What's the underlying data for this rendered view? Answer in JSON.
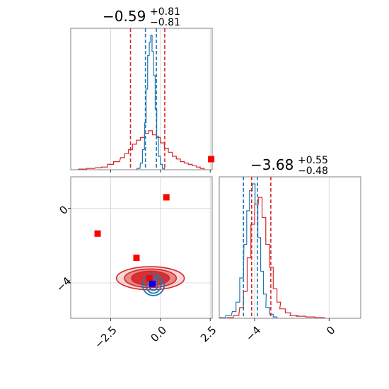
{
  "colors": {
    "blue": "#1f77b4",
    "red": "#d62728",
    "truth_marker": "#ff0000",
    "blue_marker": "#0000ff",
    "grid": "#d0d0d0"
  },
  "chart_data": {
    "type": "corner",
    "grid": true,
    "params": [
      {
        "index": 0,
        "range": [
          -4.5,
          2.6
        ],
        "ticks": [
          -2.5,
          0.0,
          2.5
        ],
        "tick_labels": [
          "−2.5",
          "0.0",
          "2.5"
        ]
      },
      {
        "index": 1,
        "range": [
          -5.9,
          1.7
        ],
        "ticks": [
          -4,
          0
        ],
        "tick_labels": [
          "−4",
          "0"
        ]
      }
    ],
    "titles": [
      {
        "median": "−0.59",
        "plus": "+0.81",
        "minus": "−0.81"
      },
      {
        "median": "−3.68",
        "plus": "+0.55",
        "minus": "−0.48"
      }
    ],
    "marginals": [
      {
        "param": 0,
        "quantiles": {
          "red": [
            -1.5,
            0.22
          ],
          "blue": [
            -0.75,
            -0.2
          ]
        },
        "series": [
          {
            "color": "red",
            "x": [
              -3.9,
              -3.5,
              -3.1,
              -2.8,
              -2.5,
              -2.2,
              -1.9,
              -1.7,
              -1.5,
              -1.3,
              -1.1,
              -0.9,
              -0.7,
              -0.5,
              -0.3,
              -0.1,
              0.1,
              0.3,
              0.5,
              0.7,
              0.9,
              1.1,
              1.3,
              1.5,
              1.7,
              1.9,
              2.1
            ],
            "y": [
              0.005,
              0.01,
              0.015,
              0.02,
              0.04,
              0.06,
              0.09,
              0.12,
              0.15,
              0.19,
              0.22,
              0.24,
              0.27,
              0.29,
              0.26,
              0.24,
              0.2,
              0.16,
              0.13,
              0.1,
              0.08,
              0.06,
              0.05,
              0.04,
              0.03,
              0.02,
              0.01
            ]
          },
          {
            "color": "blue",
            "x": [
              -1.1,
              -0.95,
              -0.85,
              -0.75,
              -0.68,
              -0.6,
              -0.52,
              -0.45,
              -0.38,
              -0.3,
              -0.22,
              -0.14,
              -0.05,
              0.05,
              0.15
            ],
            "y": [
              0.01,
              0.05,
              0.15,
              0.35,
              0.6,
              0.85,
              0.95,
              1.0,
              0.88,
              0.7,
              0.45,
              0.25,
              0.1,
              0.04,
              0.01
            ]
          }
        ]
      },
      {
        "param": 1,
        "quantiles": {
          "red": [
            -4.16,
            -3.13
          ],
          "blue": [
            -4.6,
            -3.85
          ]
        },
        "series": [
          {
            "color": "blue",
            "x": [
              -5.7,
              -5.4,
              -5.1,
              -4.9,
              -4.7,
              -4.5,
              -4.35,
              -4.2,
              -4.05,
              -3.9,
              -3.75,
              -3.6,
              -3.45,
              -3.3,
              -3.1,
              -2.9
            ],
            "y": [
              0.005,
              0.02,
              0.05,
              0.12,
              0.3,
              0.55,
              0.8,
              0.95,
              1.0,
              0.85,
              0.6,
              0.35,
              0.18,
              0.08,
              0.03,
              0.01
            ]
          },
          {
            "color": "red",
            "x": [
              -5.3,
              -5.0,
              -4.7,
              -4.5,
              -4.3,
              -4.1,
              -3.9,
              -3.7,
              -3.5,
              -3.3,
              -3.1,
              -2.9,
              -2.7,
              -2.5,
              -2.2,
              -1.9,
              -1.5,
              -1.0,
              -0.5
            ],
            "y": [
              0.005,
              0.02,
              0.08,
              0.2,
              0.45,
              0.7,
              0.85,
              0.9,
              0.75,
              0.55,
              0.38,
              0.22,
              0.12,
              0.07,
              0.04,
              0.02,
              0.015,
              0.01,
              0.005
            ]
          }
        ]
      }
    ],
    "joint": {
      "x_param": 0,
      "y_param": 1,
      "red_center": [
        -0.5,
        -3.75
      ],
      "blue_center": [
        -0.35,
        -4.1
      ],
      "red_markers": [
        [
          -3.15,
          -1.35
        ],
        [
          -1.2,
          -2.65
        ],
        [
          0.3,
          0.6
        ],
        [
          2.55,
          2.65
        ],
        [
          -0.55,
          -3.75
        ]
      ],
      "blue_markers": [
        [
          -0.4,
          -4.05
        ]
      ]
    }
  }
}
